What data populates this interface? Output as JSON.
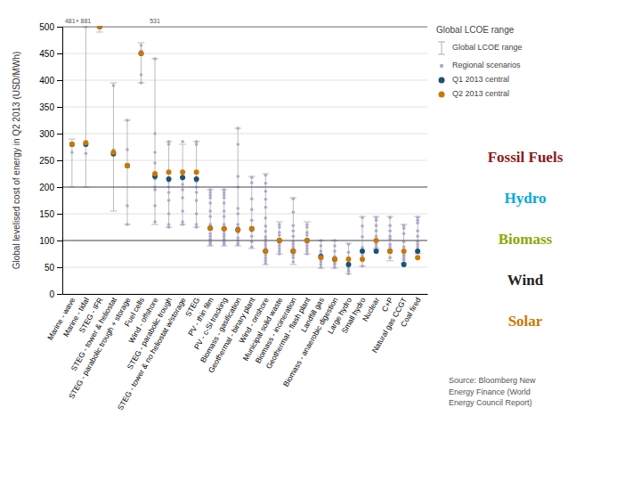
{
  "chart_data": {
    "type": "range",
    "ylabel": "Global levelised cost of energy in Q2 2013 (USD/MWh)",
    "ylim": [
      0,
      500
    ],
    "yticks": [
      0,
      50,
      100,
      150,
      200,
      250,
      300,
      350,
      400,
      450,
      500
    ],
    "grid": true,
    "categories": [
      "Marine - wave",
      "Marine - tidal",
      "STEG - IFR",
      "STEG - tower & heliostat",
      "STEG - parabolic trough + storage",
      "Fuel cells",
      "Wind - offshore",
      "STEG - parabolic trough",
      "STEG - tower & no heliostat w/storage",
      "STEG",
      "PV - thin film",
      "PV - c-Si tracking",
      "Biomass - gasification",
      "Geothermal - binary plant",
      "Wind - onshore",
      "Municipal solid waste",
      "Biomass - incineration",
      "Geothermal - flash plant",
      "Landfill gas",
      "Biomass - anaerobic digestion",
      "Large hydro",
      "Small hydro",
      "Nuclear",
      "C+P",
      "Natural gas CCGT",
      "Coal fired"
    ],
    "legend_title": "Global LCOE range",
    "ranges": {
      "name": "Global LCOE range",
      "color": "#bbbbbb",
      "low": [
        200,
        200,
        490,
        155,
        130,
        395,
        130,
        125,
        130,
        125,
        90,
        90,
        90,
        85,
        55,
        75,
        55,
        75,
        48,
        48,
        38,
        52,
        85,
        62,
        58,
        75
      ],
      "high": [
        290,
        500,
        500,
        395,
        325,
        470,
        440,
        285,
        280,
        285,
        195,
        195,
        310,
        220,
        225,
        135,
        180,
        135,
        100,
        100,
        95,
        145,
        145,
        145,
        130,
        145
      ]
    },
    "regional": {
      "name": "Regional scenarios",
      "color": "#aaaacc",
      "values": [
        [
          265,
          280
        ],
        [
          263,
          500
        ],
        [
          500
        ],
        [
          270,
          390
        ],
        [
          130,
          165,
          240,
          270,
          325
        ],
        [
          395,
          410,
          455,
          465
        ],
        [
          135,
          165,
          195,
          200,
          215,
          245,
          265,
          300,
          440
        ],
        [
          125,
          130,
          150,
          175,
          190,
          200,
          210,
          280,
          285
        ],
        [
          130,
          135,
          155,
          180,
          195,
          205,
          215,
          285
        ],
        [
          125,
          130,
          150,
          175,
          190,
          200,
          210,
          280,
          285
        ],
        [
          92,
          95,
          98,
          100,
          103,
          108,
          113,
          125,
          130,
          145,
          155,
          170,
          180,
          185,
          190,
          195
        ],
        [
          92,
          95,
          98,
          100,
          103,
          108,
          113,
          125,
          130,
          145,
          155,
          170,
          180,
          185,
          190,
          195
        ],
        [
          92,
          95,
          100,
          105,
          115,
          120,
          125,
          130,
          150,
          160,
          200,
          220,
          280,
          310
        ],
        [
          88,
          98,
          108,
          118,
          138,
          158,
          178,
          208,
          218
        ],
        [
          57,
          62,
          67,
          72,
          77,
          82,
          87,
          92,
          97,
          102,
          107,
          117,
          127,
          142,
          162,
          177,
          192,
          207,
          222
        ],
        [
          75,
          80,
          85,
          90,
          95,
          100,
          110,
          115,
          125,
          130
        ],
        [
          60,
          68,
          73,
          78,
          83,
          88,
          93,
          98,
          108,
          118,
          128,
          153,
          178
        ],
        [
          75,
          80,
          85,
          90,
          95,
          100,
          110,
          115,
          125,
          130
        ],
        [
          50,
          55,
          60,
          65,
          70,
          75,
          80,
          90,
          100
        ],
        [
          50,
          55,
          58,
          62,
          65,
          70,
          80,
          90,
          100
        ],
        [
          38,
          43,
          48,
          53,
          58,
          68,
          78,
          93
        ],
        [
          52,
          62,
          72,
          87,
          107,
          127,
          143
        ],
        [
          88,
          93,
          98,
          108,
          118,
          128,
          138,
          143
        ],
        [
          68,
          78,
          83,
          88,
          93,
          103,
          108,
          118,
          128,
          143
        ],
        [
          58,
          63,
          66,
          70,
          73,
          78,
          88,
          98,
          113,
          123,
          128
        ],
        [
          78,
          83,
          88,
          93,
          98,
          108,
          118,
          133,
          138,
          143
        ]
      ]
    },
    "series": [
      {
        "name": "Q1 2013 central",
        "color": "#1a5276",
        "values": [
          280,
          280,
          500,
          262,
          240,
          450,
          220,
          215,
          218,
          215,
          123,
          122,
          120,
          122,
          80,
          100,
          80,
          100,
          70,
          65,
          55,
          80,
          80,
          80,
          55,
          80
        ]
      },
      {
        "name": "Q2 2013 central",
        "color": "#cc7700",
        "values": [
          280,
          283,
          500,
          265,
          240,
          450,
          225,
          228,
          228,
          228,
          123,
          122,
          120,
          122,
          80,
          100,
          80,
          100,
          68,
          65,
          65,
          65,
          100,
          80,
          80,
          68
        ]
      }
    ],
    "hlines": [
      500,
      200,
      100
    ],
    "annotations": [
      {
        "text": "481+",
        "category": "Marine - wave"
      },
      {
        "text": "881",
        "category": "Marine - tidal"
      },
      {
        "text": "531",
        "category": "Wind - offshore"
      }
    ],
    "group_labels": [
      {
        "text": "Fossil Fuels",
        "color": "#8b1a1a"
      },
      {
        "text": "Hydro",
        "color": "#00aadd"
      },
      {
        "text": "Biomass",
        "color": "#88aa00"
      },
      {
        "text": "Wind",
        "color": "#222222"
      },
      {
        "text": "Solar",
        "color": "#cc7700"
      }
    ],
    "source": "Source: Bloomberg New\nEnergy Finance (World\nEnergy Council Report)"
  }
}
